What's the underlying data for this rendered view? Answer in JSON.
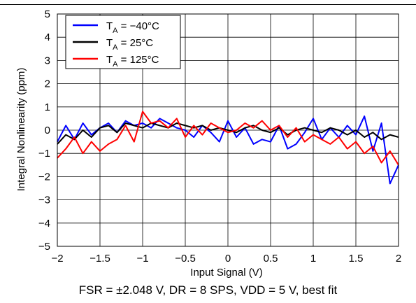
{
  "caption": "FSR = ±2.048 V, DR = 8 SPS, VDD = 5 V, best fit",
  "chart_data": {
    "type": "line",
    "title": "",
    "xlabel": "Input Signal (V)",
    "ylabel": "Integral Nonlinearity (ppm)",
    "xlim": [
      -2,
      2
    ],
    "ylim": [
      -5,
      5
    ],
    "xticks": [
      -2,
      -1.5,
      -1,
      -0.5,
      0,
      0.5,
      1,
      1.5,
      2
    ],
    "xtick_labels": [
      "−2",
      "−1.5",
      "−1",
      "−0.5",
      "0",
      "0.5",
      "1",
      "1.5",
      "2"
    ],
    "yticks": [
      -5,
      -4,
      -3,
      -2,
      -1,
      0,
      1,
      2,
      3,
      4,
      5
    ],
    "ytick_labels": [
      "−5",
      "−4",
      "−3",
      "−2",
      "−1",
      "0",
      "1",
      "2",
      "3",
      "4",
      "5"
    ],
    "grid": true,
    "legend_position": "top-left",
    "x": [
      -2.0,
      -1.9,
      -1.8,
      -1.7,
      -1.6,
      -1.5,
      -1.4,
      -1.3,
      -1.2,
      -1.1,
      -1.0,
      -0.9,
      -0.8,
      -0.7,
      -0.6,
      -0.5,
      -0.4,
      -0.3,
      -0.2,
      -0.1,
      0.0,
      0.1,
      0.2,
      0.3,
      0.4,
      0.5,
      0.6,
      0.7,
      0.8,
      0.9,
      1.0,
      1.1,
      1.2,
      1.3,
      1.4,
      1.5,
      1.6,
      1.7,
      1.8,
      1.9,
      2.0
    ],
    "series": [
      {
        "name": "TA = −40°C",
        "label_main": "T",
        "label_sub": "A",
        "label_rest": " = −40°C",
        "color": "#0000ff",
        "values": [
          -0.5,
          0.2,
          -0.4,
          0.3,
          -0.2,
          0.1,
          0.3,
          -0.1,
          0.4,
          0.2,
          0.3,
          0.1,
          0.5,
          0.3,
          0.1,
          0.0,
          -0.3,
          0.2,
          -0.1,
          -0.5,
          0.4,
          -0.3,
          0.1,
          -0.6,
          -0.4,
          -0.5,
          0.2,
          -0.8,
          -0.6,
          -0.1,
          0.5,
          -0.4,
          0.1,
          -0.3,
          0.2,
          -0.2,
          0.6,
          -0.9,
          0.3,
          -2.3,
          -1.5
        ]
      },
      {
        "name": "TA = 25°C",
        "label_main": "T",
        "label_sub": "A",
        "label_rest": " = 25°C",
        "color": "#000000",
        "values": [
          -0.6,
          -0.2,
          -0.4,
          0.0,
          -0.3,
          0.1,
          0.2,
          -0.1,
          0.3,
          0.2,
          0.1,
          0.3,
          0.2,
          0.1,
          0.3,
          0.2,
          0.1,
          0.2,
          0.0,
          0.1,
          0.0,
          -0.1,
          0.1,
          0.2,
          0.0,
          -0.1,
          0.1,
          -0.2,
          0.0,
          0.1,
          0.0,
          -0.1,
          0.1,
          0.0,
          -0.2,
          0.0,
          -0.3,
          -0.1,
          -0.4,
          -0.2,
          -0.3
        ]
      },
      {
        "name": "TA = 125°C",
        "label_main": "T",
        "label_sub": "A",
        "label_rest": " = 125°C",
        "color": "#ff0000",
        "values": [
          -1.2,
          -0.8,
          -0.3,
          -1.0,
          -0.5,
          -0.9,
          -0.6,
          -0.4,
          0.2,
          -0.5,
          0.8,
          0.3,
          0.4,
          0.1,
          0.5,
          -0.3,
          0.2,
          -0.2,
          0.3,
          0.1,
          -0.1,
          0.0,
          0.3,
          0.1,
          0.4,
          0.0,
          0.2,
          -0.3,
          0.1,
          -0.5,
          -0.2,
          -0.4,
          -0.6,
          -0.3,
          -0.8,
          -0.5,
          -1.0,
          -0.7,
          -1.4,
          -0.9,
          -1.5
        ]
      }
    ]
  }
}
